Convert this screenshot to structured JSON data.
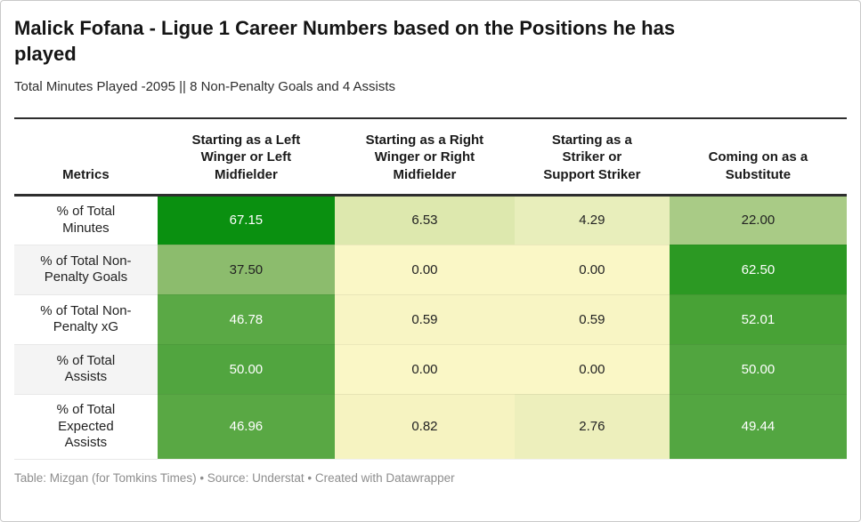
{
  "header": {
    "title_display": "Malick Fofana - Ligue 1 Career Numbers based on the Positions he has\nplayed",
    "subtitle": "Total Minutes Played -2095 || 8 Non-Penalty Goals and 4 Assists"
  },
  "table": {
    "columns": [
      "Metrics",
      "Starting as a Left\nWinger or Left\nMidfielder",
      "Starting as a Right\nWinger or Right\nMidfielder",
      "Starting as a\nStriker or\nSupport Striker",
      "Coming on as a\nSubstitute"
    ],
    "rows": [
      {
        "label": "% of Total\nMinutes",
        "cells": [
          {
            "value": "67.15",
            "bg": "#0a9010",
            "fg": "#ffffff"
          },
          {
            "value": "6.53",
            "bg": "#dde8ae",
            "fg": "#222222"
          },
          {
            "value": "4.29",
            "bg": "#e8eebb",
            "fg": "#222222"
          },
          {
            "value": "22.00",
            "bg": "#a9cb86",
            "fg": "#222222"
          }
        ]
      },
      {
        "label": "% of Total Non-\nPenalty Goals",
        "cells": [
          {
            "value": "37.50",
            "bg": "#8cbc6d",
            "fg": "#222222"
          },
          {
            "value": "0.00",
            "bg": "#faf7c6",
            "fg": "#222222"
          },
          {
            "value": "0.00",
            "bg": "#faf7c6",
            "fg": "#222222"
          },
          {
            "value": "62.50",
            "bg": "#2c9923",
            "fg": "#ffffff"
          }
        ]
      },
      {
        "label": "% of Total Non-\nPenalty xG",
        "cells": [
          {
            "value": "46.78",
            "bg": "#5aa945",
            "fg": "#ffffff"
          },
          {
            "value": "0.59",
            "bg": "#f8f5c4",
            "fg": "#222222"
          },
          {
            "value": "0.59",
            "bg": "#f8f5c4",
            "fg": "#222222"
          },
          {
            "value": "52.01",
            "bg": "#48a236",
            "fg": "#ffffff"
          }
        ]
      },
      {
        "label": "% of Total\nAssists",
        "cells": [
          {
            "value": "50.00",
            "bg": "#51a53f",
            "fg": "#ffffff"
          },
          {
            "value": "0.00",
            "bg": "#faf7c6",
            "fg": "#222222"
          },
          {
            "value": "0.00",
            "bg": "#faf7c6",
            "fg": "#222222"
          },
          {
            "value": "50.00",
            "bg": "#51a53f",
            "fg": "#ffffff"
          }
        ]
      },
      {
        "label": "% of Total\nExpected\nAssists",
        "cells": [
          {
            "value": "46.96",
            "bg": "#59a844",
            "fg": "#ffffff"
          },
          {
            "value": "0.82",
            "bg": "#f6f3c1",
            "fg": "#222222"
          },
          {
            "value": "2.76",
            "bg": "#edefbc",
            "fg": "#222222"
          },
          {
            "value": "49.44",
            "bg": "#53a641",
            "fg": "#ffffff"
          }
        ]
      }
    ]
  },
  "footer": {
    "text": "Table: Mizgan (for Tomkins Times) • Source: Understat • Created with Datawrapper"
  },
  "chart_data": {
    "type": "table",
    "title": "Malick Fofana - Ligue 1 Career Numbers based on the Positions he has played",
    "subtitle": "Total Minutes Played -2095 || 8 Non-Penalty Goals and 4 Assists",
    "columns": [
      "Metrics",
      "Starting as a Left Winger or Left Midfielder",
      "Starting as a Right Winger or Right Midfielder",
      "Starting as a Striker or Support Striker",
      "Coming on as a Substitute"
    ],
    "rows": [
      {
        "metric": "% of Total Minutes",
        "values": [
          67.15,
          6.53,
          4.29,
          22.0
        ]
      },
      {
        "metric": "% of Total Non-Penalty Goals",
        "values": [
          37.5,
          0.0,
          0.0,
          62.5
        ]
      },
      {
        "metric": "% of Total Non-Penalty xG",
        "values": [
          46.78,
          0.59,
          0.59,
          52.01
        ]
      },
      {
        "metric": "% of Total Assists",
        "values": [
          50.0,
          0.0,
          0.0,
          50.0
        ]
      },
      {
        "metric": "% of Total Expected Assists",
        "values": [
          46.96,
          0.82,
          2.76,
          49.44
        ]
      }
    ],
    "heatmap": true,
    "color_scale": {
      "low_color": "#faf7c6",
      "high_color": "#0a9010",
      "low_value": 0,
      "high_value": 67.15
    },
    "footer": "Table: Mizgan (for Tomkins Times) • Source: Understat • Created with Datawrapper"
  }
}
